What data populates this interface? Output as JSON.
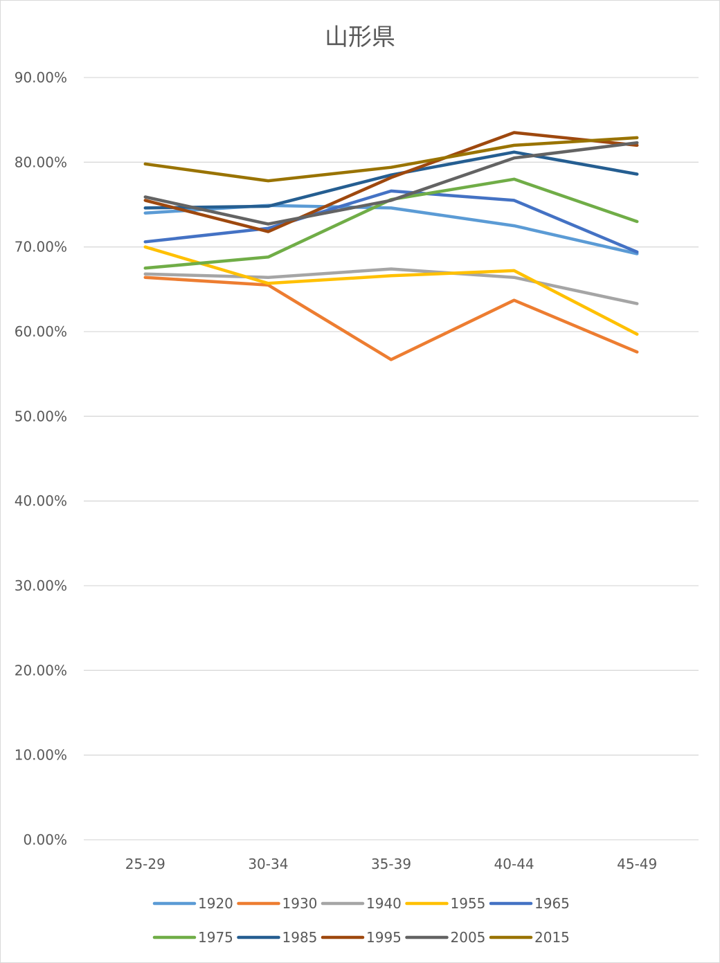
{
  "chart_data": {
    "type": "line",
    "title": "山形県",
    "xlabel": "",
    "ylabel": "",
    "categories": [
      "25-29",
      "30-34",
      "35-39",
      "40-44",
      "45-49"
    ],
    "ylim": [
      0,
      0.9
    ],
    "yticks": [
      0,
      0.1,
      0.2,
      0.3,
      0.4,
      0.5,
      0.6,
      0.7,
      0.8,
      0.9
    ],
    "ytick_labels": [
      "0.00%",
      "10.00%",
      "20.00%",
      "30.00%",
      "40.00%",
      "50.00%",
      "60.00%",
      "70.00%",
      "80.00%",
      "90.00%"
    ],
    "grid": true,
    "legend_position": "bottom",
    "series": [
      {
        "name": "1920",
        "color": "#5B9BD5",
        "values": [
          0.74,
          0.749,
          0.746,
          0.725,
          0.692
        ]
      },
      {
        "name": "1930",
        "color": "#ED7D31",
        "values": [
          0.664,
          0.655,
          0.567,
          0.637,
          0.576
        ]
      },
      {
        "name": "1940",
        "color": "#A5A5A5",
        "values": [
          0.668,
          0.664,
          0.674,
          0.664,
          0.633
        ]
      },
      {
        "name": "1955",
        "color": "#FFC000",
        "values": [
          0.7,
          0.657,
          0.666,
          0.672,
          0.597
        ]
      },
      {
        "name": "1965",
        "color": "#4472C4",
        "values": [
          0.706,
          0.722,
          0.766,
          0.755,
          0.694
        ]
      },
      {
        "name": "1975",
        "color": "#70AD47",
        "values": [
          0.675,
          0.688,
          0.756,
          0.78,
          0.73
        ]
      },
      {
        "name": "1985",
        "color": "#255E91",
        "values": [
          0.746,
          0.748,
          0.785,
          0.812,
          0.786
        ]
      },
      {
        "name": "1995",
        "color": "#9E480E",
        "values": [
          0.755,
          0.718,
          0.782,
          0.835,
          0.82
        ]
      },
      {
        "name": "2005",
        "color": "#636363",
        "values": [
          0.759,
          0.727,
          0.755,
          0.805,
          0.823
        ]
      },
      {
        "name": "2015",
        "color": "#997300",
        "values": [
          0.798,
          0.778,
          0.794,
          0.82,
          0.829
        ]
      }
    ]
  }
}
